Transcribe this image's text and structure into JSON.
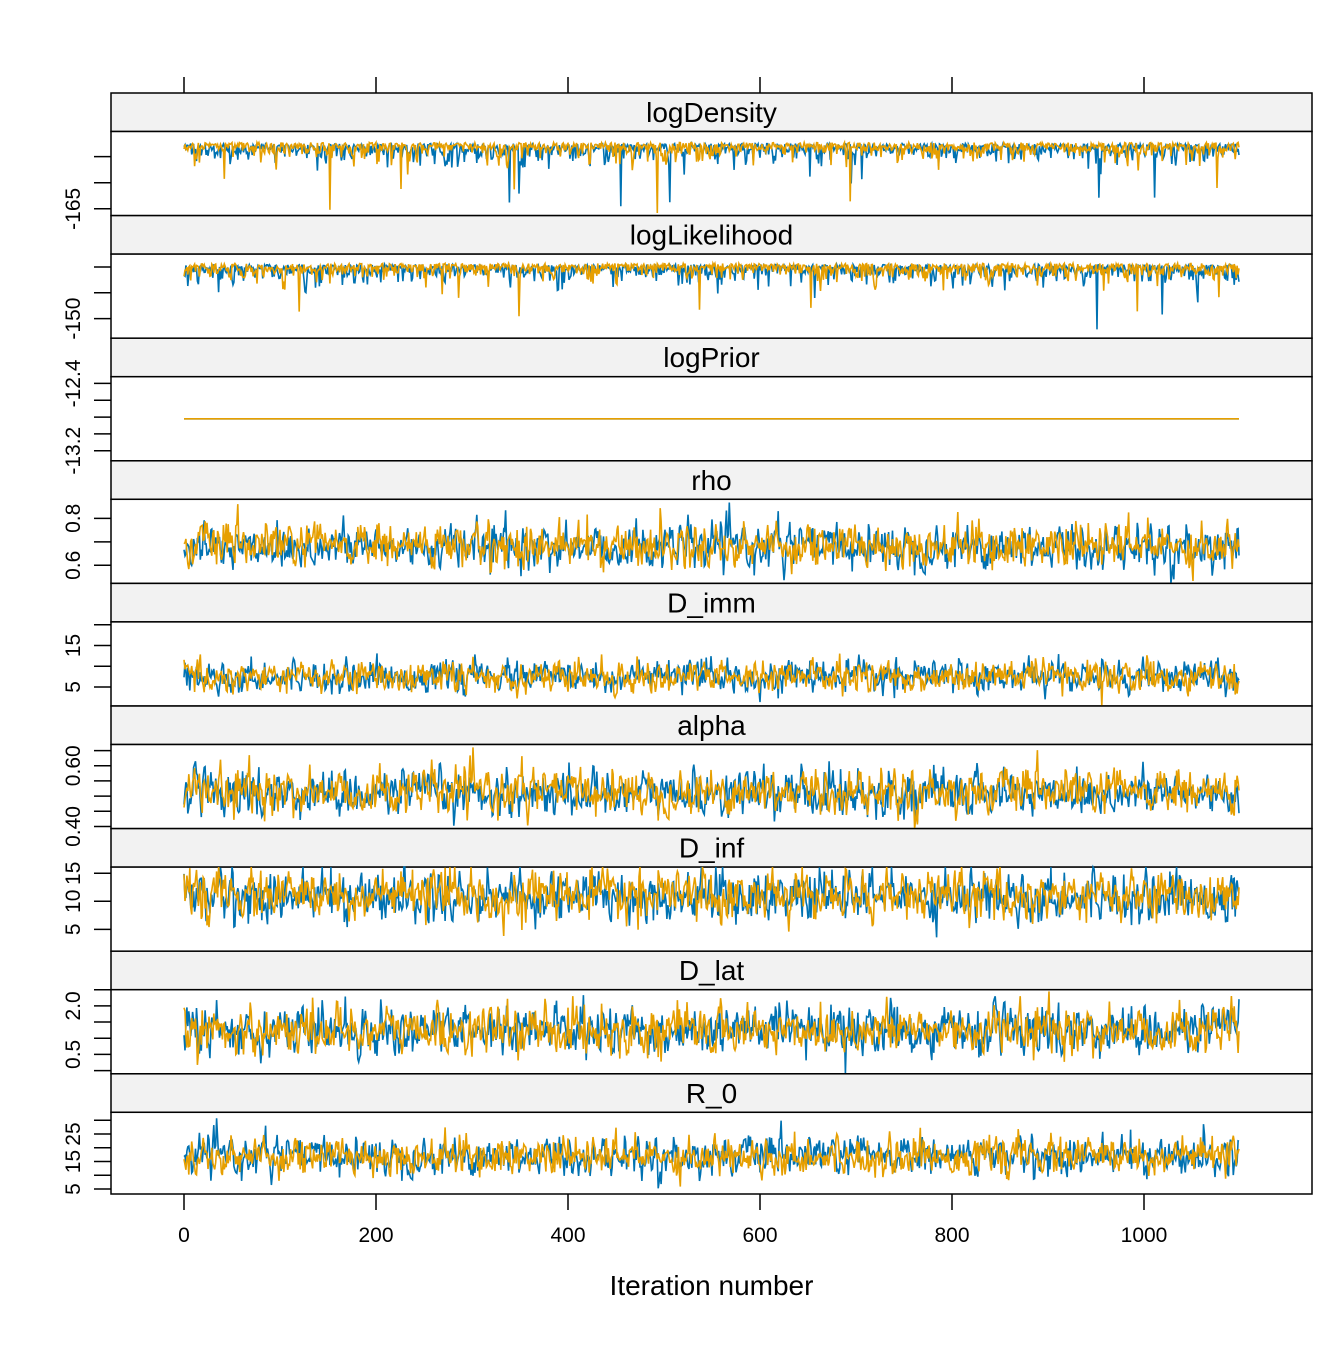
{
  "chart_data": {
    "type": "line",
    "title": "",
    "xlabel": "Iteration number",
    "xlim": [
      -75,
      1175
    ],
    "xticks": [
      0,
      200,
      400,
      600,
      800,
      1000
    ],
    "xtick_labels": [
      "0",
      "200",
      "400",
      "600",
      "800",
      "1000"
    ],
    "n_iterations": 1100,
    "series_colors": [
      "#0072B2",
      "#E69F00"
    ],
    "panels": [
      {
        "name": "logDensity",
        "ylim": [
          -166.3,
          -150.2
        ],
        "yticks": [
          -155,
          -160,
          -165
        ],
        "ylabels": [
          "",
          "",
          "-165"
        ],
        "chains": [
          {
            "mean": -152.5,
            "sd": 1.6,
            "dips": true
          },
          {
            "mean": -152.3,
            "sd": 1.5,
            "dips": true
          }
        ]
      },
      {
        "name": "logLikelihood",
        "ylim": [
          -153.8,
          -137.5
        ],
        "yticks": [
          -140,
          -145,
          -150
        ],
        "ylabels": [
          "",
          "",
          "-150"
        ],
        "chains": [
          {
            "mean": -139.5,
            "sd": 1.6,
            "dips": true
          },
          {
            "mean": -139.3,
            "sd": 1.5,
            "dips": true
          }
        ]
      },
      {
        "name": "logPrior",
        "ylim": [
          -13.32,
          -12.32
        ],
        "yticks": [
          -12.4,
          -12.6,
          -12.8,
          -13.0,
          -13.2
        ],
        "ylabels": [
          "-12.4",
          "",
          "",
          "",
          "-13.2"
        ],
        "chains": [
          {
            "mean": -12.82,
            "sd": 0
          },
          {
            "mean": -12.82,
            "sd": 0
          }
        ]
      },
      {
        "name": "rho",
        "ylim": [
          0.523,
          0.881
        ],
        "yticks": [
          0.8,
          0.7,
          0.6
        ],
        "ylabels": [
          "0.8",
          "",
          "0.6"
        ],
        "chains": [
          {
            "mean": 0.68,
            "sd": 0.045
          },
          {
            "mean": 0.685,
            "sd": 0.045
          }
        ]
      },
      {
        "name": "D_imm",
        "ylim": [
          0.4,
          20.7
        ],
        "yticks": [
          20,
          15,
          10,
          5
        ],
        "ylabels": [
          "",
          "15",
          "",
          "5"
        ],
        "chains": [
          {
            "mean": 7.5,
            "sd": 1.8
          },
          {
            "mean": 7.5,
            "sd": 1.8
          }
        ]
      },
      {
        "name": "alpha",
        "ylim": [
          0.393,
          0.67
        ],
        "yticks": [
          0.65,
          0.6,
          0.55,
          0.5,
          0.45,
          0.4
        ],
        "ylabels": [
          "",
          "0.60",
          "",
          "",
          "",
          "0.40"
        ],
        "chains": [
          {
            "mean": 0.51,
            "sd": 0.035
          },
          {
            "mean": 0.515,
            "sd": 0.035
          }
        ]
      },
      {
        "name": "D_inf",
        "ylim": [
          1.1,
          16.1
        ],
        "yticks": [
          15,
          10,
          5
        ],
        "ylabels": [
          "15",
          "10",
          "5"
        ],
        "chains": [
          {
            "mean": 11.0,
            "sd": 2.2
          },
          {
            "mean": 11.0,
            "sd": 2.1
          }
        ]
      },
      {
        "name": "D_lat",
        "ylim": [
          -0.1,
          2.5
        ],
        "yticks": [
          2.5,
          2.0,
          1.5,
          1.0,
          0.5,
          0.0
        ],
        "ylabels": [
          "",
          "2.0",
          "",
          "",
          "0.5",
          ""
        ],
        "chains": [
          {
            "mean": 1.25,
            "sd": 0.35
          },
          {
            "mean": 1.25,
            "sd": 0.35
          }
        ]
      },
      {
        "name": "R_0",
        "ylim": [
          3.2,
          32.9
        ],
        "yticks": [
          30,
          25,
          20,
          15,
          10,
          5
        ],
        "ylabels": [
          "",
          "25",
          "",
          "15",
          "",
          "5"
        ],
        "chains": [
          {
            "mean": 17,
            "sd": 3.3
          },
          {
            "mean": 17,
            "sd": 3.3
          }
        ]
      }
    ]
  }
}
